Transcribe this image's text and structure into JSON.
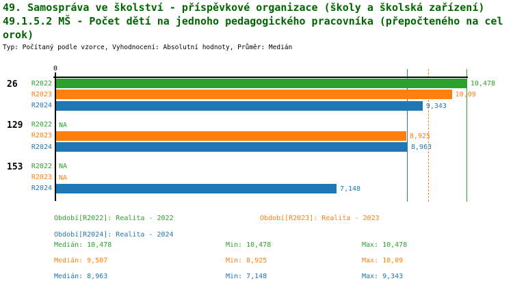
{
  "header": {
    "title_line1": "49. Samospráva ve školství - příspěvkové organizace (školy a školská zařízení)",
    "title_line2": "49.1.5.2 MŠ - Počet dětí na jednoho pedagogického pracovníka (přepočteného na cel",
    "title_line3": "orok)",
    "subtitle": "Typ: Počítaný podle vzorce, Vyhodnocení: Absolutní hodnoty, Průměr: Medián"
  },
  "colors": {
    "r2022": "#2ca02c",
    "r2023": "#ff7f0e",
    "r2024": "#1f77b4",
    "axis": "#000000",
    "title": "#006400"
  },
  "chart_data": {
    "type": "bar",
    "orientation": "horizontal",
    "title": "49.1.5.2 MŠ - Počet dětí na jednoho pedagogického pracovníka (přepočteného na celorok)",
    "axis": {
      "tick_label": "0",
      "origin_value": 0
    },
    "xlim": [
      0,
      11.6
    ],
    "na_text": "NA",
    "groups": [
      {
        "label": "26",
        "rows": [
          {
            "period": "R2022",
            "value": 10.478,
            "display": "10,478"
          },
          {
            "period": "R2023",
            "value": 10.09,
            "display": "10,09"
          },
          {
            "period": "R2024",
            "value": 9.343,
            "display": "9,343"
          }
        ]
      },
      {
        "label": "129",
        "rows": [
          {
            "period": "R2022",
            "value": null,
            "display": "NA"
          },
          {
            "period": "R2023",
            "value": 8.925,
            "display": "8,925"
          },
          {
            "period": "R2024",
            "value": 8.963,
            "display": "8,963"
          }
        ]
      },
      {
        "label": "153",
        "rows": [
          {
            "period": "R2022",
            "value": null,
            "display": "NA"
          },
          {
            "period": "R2023",
            "value": null,
            "display": "NA"
          },
          {
            "period": "R2024",
            "value": 7.148,
            "display": "7,148"
          }
        ]
      }
    ],
    "median_lines": [
      {
        "series": "R2022",
        "value": 10.478,
        "style": "solid"
      },
      {
        "series": "R2023",
        "value": 9.507,
        "style": "dashed"
      },
      {
        "series": "R2024",
        "value": 8.963,
        "style": "solid"
      }
    ]
  },
  "legend": {
    "items": [
      {
        "series": "R2022",
        "label": "Období[R2022]: Realita - 2022"
      },
      {
        "series": "R2023",
        "label": "Období[R2023]: Realita - 2023"
      },
      {
        "series": "R2024",
        "label": "Období[R2024]: Realita - 2024"
      }
    ]
  },
  "stats": {
    "rows": [
      {
        "series": "R2022",
        "median": "Medián: 10,478",
        "min": "Min: 10,478",
        "max": "Max: 10,478"
      },
      {
        "series": "R2023",
        "median": "Medián: 9,507",
        "min": "Min: 8,925",
        "max": "Max: 10,09"
      },
      {
        "series": "R2024",
        "median": "Medián: 8,963",
        "min": "Min: 7,148",
        "max": "Max: 9,343"
      }
    ]
  }
}
